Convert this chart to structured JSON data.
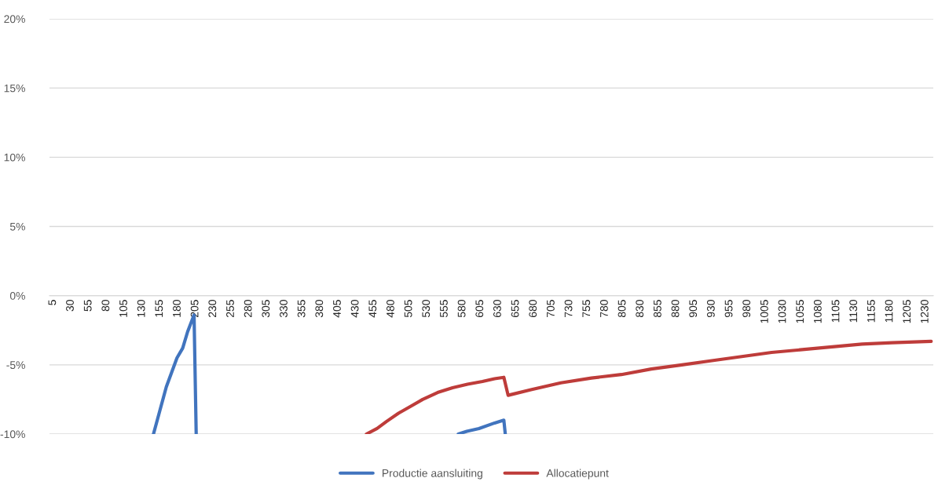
{
  "chart_data": {
    "type": "line",
    "xlim": [
      0,
      1241
    ],
    "xticks": [
      5,
      30,
      55,
      80,
      105,
      130,
      155,
      180,
      205,
      230,
      255,
      280,
      305,
      330,
      355,
      380,
      405,
      430,
      455,
      480,
      505,
      530,
      555,
      580,
      605,
      630,
      655,
      680,
      705,
      730,
      755,
      780,
      805,
      830,
      855,
      880,
      905,
      930,
      955,
      980,
      1005,
      1030,
      1055,
      1080,
      1105,
      1130,
      1155,
      1180,
      1205,
      1230
    ],
    "ylim": [
      -10,
      20
    ],
    "yticks": [
      {
        "value": -10,
        "label": "-10%"
      },
      {
        "value": -5,
        "label": "-5%"
      },
      {
        "value": 0,
        "label": "0%"
      },
      {
        "value": 5,
        "label": "5%"
      },
      {
        "value": 10,
        "label": "10%"
      },
      {
        "value": 15,
        "label": "15%"
      },
      {
        "value": 20,
        "label": "20%"
      }
    ],
    "grid": "y",
    "legend": "bottom",
    "line_style": "solid",
    "marker": "none",
    "series": [
      {
        "name": "Productie aansluiting",
        "color": "#4174be",
        "x": [
          146,
          155,
          164,
          179,
          187,
          194,
          203,
          206,
          390,
          574,
          586,
          603,
          625,
          638,
          640
        ],
        "values": [
          -10,
          -8.3,
          -6.6,
          -4.5,
          -3.8,
          -2.6,
          -1.4,
          -10,
          null,
          -10,
          -9.8,
          -9.6,
          -9.2,
          -9.0,
          -10
        ]
      },
      {
        "name": "Allocatiepunt",
        "color": "#be3c3a",
        "x": [
          445,
          460,
          473,
          490,
          507,
          524,
          545,
          566,
          587,
          608,
          625,
          638,
          644,
          676,
          718,
          761,
          803,
          845,
          888,
          930,
          972,
          1014,
          1057,
          1099,
          1141,
          1183,
          1238
        ],
        "values": [
          -10,
          -9.6,
          -9.1,
          -8.5,
          -8.0,
          -7.5,
          -7.0,
          -6.65,
          -6.4,
          -6.2,
          -6.0,
          -5.9,
          -7.2,
          -6.8,
          -6.3,
          -5.95,
          -5.7,
          -5.3,
          -5.0,
          -4.7,
          -4.4,
          -4.1,
          -3.9,
          -3.7,
          -3.5,
          -3.4,
          -3.3
        ]
      }
    ]
  }
}
